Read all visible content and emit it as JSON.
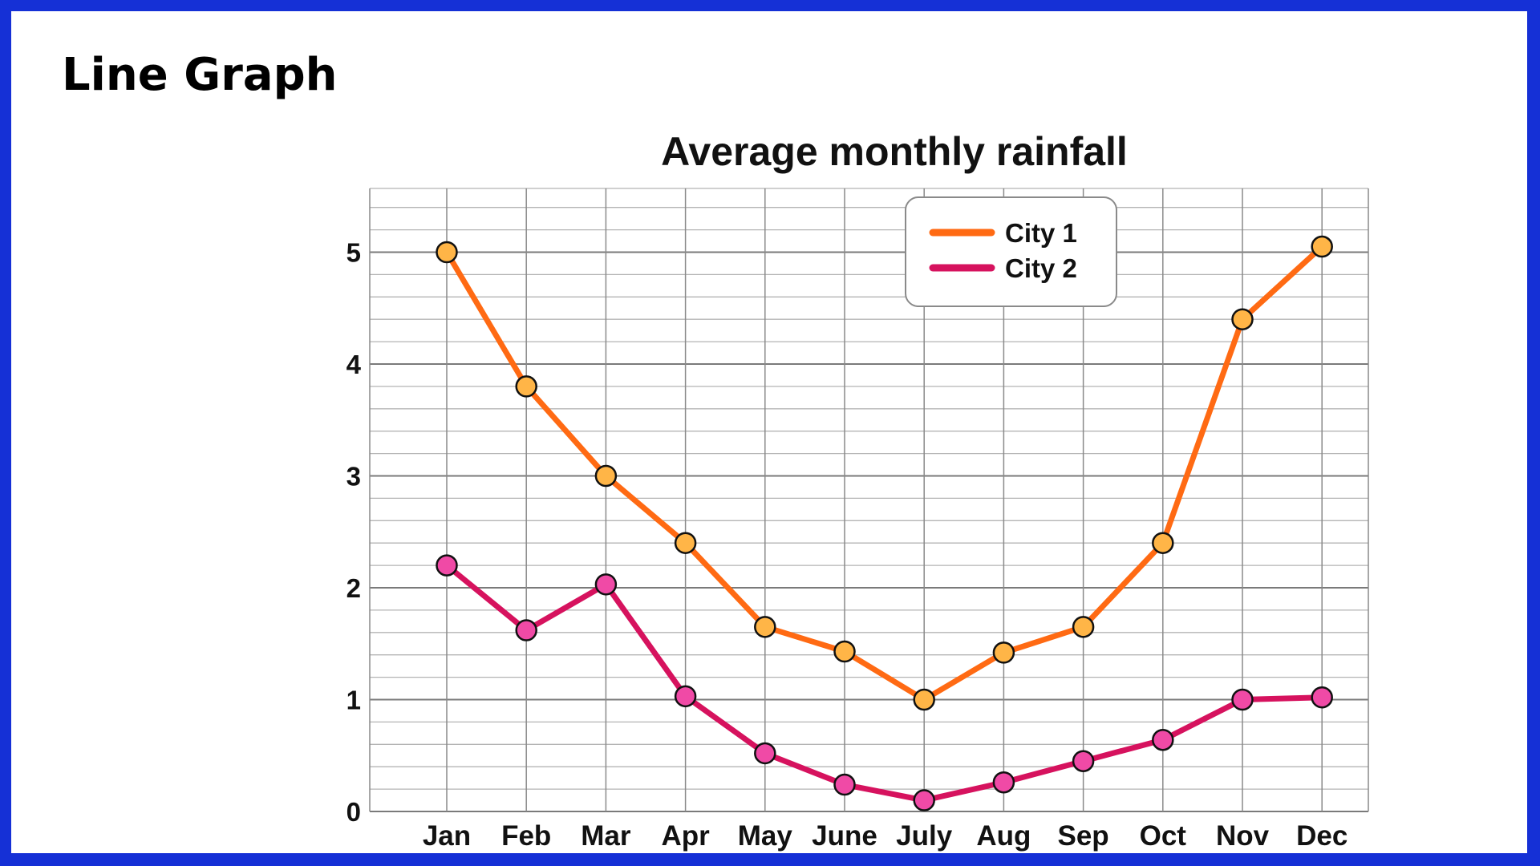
{
  "page": {
    "heading": "Line Graph"
  },
  "colors": {
    "frame": "#1530d6",
    "city1_line": "#ff6a13",
    "city1_marker": "#ffb547",
    "city2_line": "#d6125e",
    "city2_marker": "#f04aa6",
    "grid": "#8a8a8a"
  },
  "chart_data": {
    "type": "line",
    "title": "Average monthly rainfall",
    "xlabel": "",
    "ylabel": "",
    "categories": [
      "Jan",
      "Feb",
      "Mar",
      "Apr",
      "May",
      "June",
      "July",
      "Aug",
      "Sep",
      "Oct",
      "Nov",
      "Dec"
    ],
    "ylim": [
      0,
      5.5
    ],
    "yticks": [
      0,
      1,
      2,
      3,
      4,
      5
    ],
    "grid": true,
    "legend_position": "top-right",
    "series": [
      {
        "name": "City 1",
        "color": "#ff6a13",
        "marker_color": "#ffb547",
        "values": [
          5.0,
          3.8,
          3.0,
          2.4,
          1.65,
          1.43,
          1.0,
          1.42,
          1.65,
          2.4,
          4.4,
          5.05
        ]
      },
      {
        "name": "City 2",
        "color": "#d6125e",
        "marker_color": "#f04aa6",
        "values": [
          2.2,
          1.62,
          2.03,
          1.03,
          0.52,
          0.24,
          0.1,
          0.26,
          0.45,
          0.64,
          1.0,
          1.02
        ]
      }
    ]
  }
}
